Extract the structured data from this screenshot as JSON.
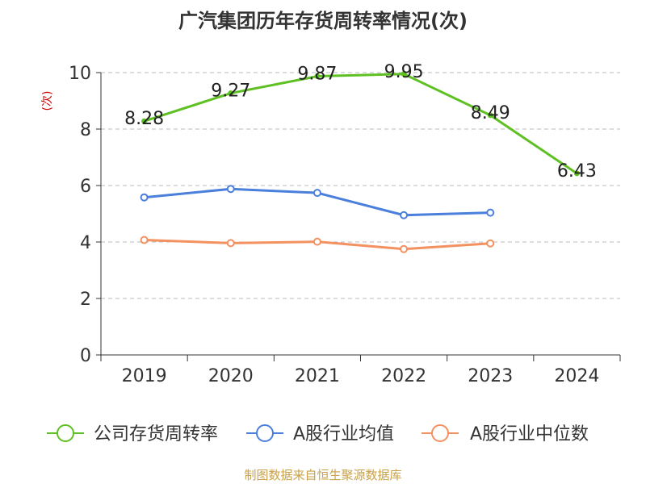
{
  "chart_data": {
    "type": "line",
    "title": "广汽集团历年存货周转率情况(次)",
    "ylabel": "(次)",
    "xlabel": "",
    "categories": [
      "2019",
      "2020",
      "2021",
      "2022",
      "2023",
      "2024"
    ],
    "ylim": [
      0,
      10
    ],
    "yticks": [
      0,
      2,
      4,
      6,
      8,
      10
    ],
    "grid": true,
    "legend_position": "bottom",
    "series": [
      {
        "name": "公司存货周转率",
        "color": "#5ec022",
        "values": [
          8.28,
          9.27,
          9.87,
          9.95,
          8.49,
          6.43
        ],
        "labels": [
          "8.28",
          "9.27",
          "9.87",
          "9.95",
          "8.49",
          "6.43"
        ],
        "show_labels": true
      },
      {
        "name": "A股行业均值",
        "color": "#4a7fdb",
        "values": [
          5.58,
          5.88,
          5.74,
          4.95,
          5.04,
          null
        ],
        "show_labels": false
      },
      {
        "name": "A股行业中位数",
        "color": "#f39161",
        "values": [
          4.07,
          3.96,
          4.01,
          3.75,
          3.95,
          null
        ],
        "show_labels": false
      }
    ],
    "source": "制图数据来自恒生聚源数据库"
  }
}
